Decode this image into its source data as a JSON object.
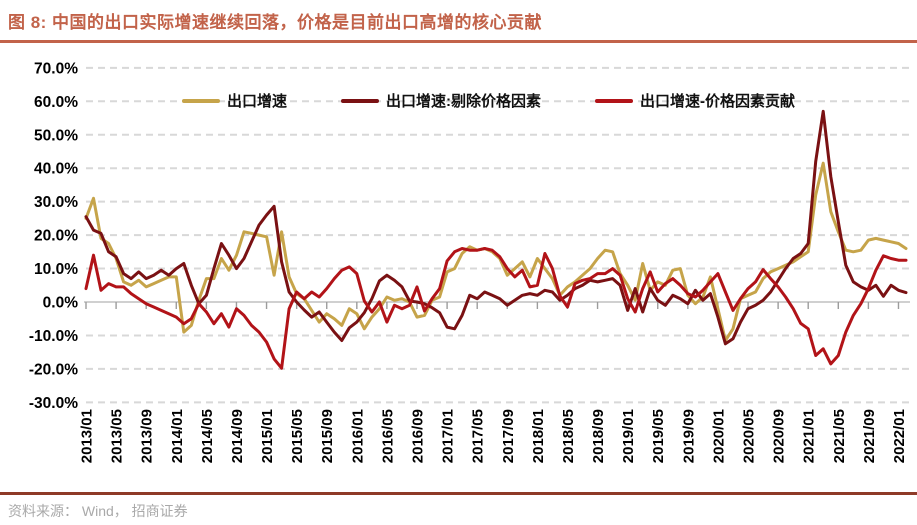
{
  "page": {
    "title": "图 8:  中国的出口实际增速继续回落，价格是目前出口高增的核心贡献",
    "source": "资料来源： Wind， 招商证券"
  },
  "colors": {
    "title": "#C2634A",
    "title_rule": "#C2634A",
    "footer_rule": "#8E3A28",
    "source_text": "#A9A9A9",
    "grid": "#D8D8D8",
    "axis": "#C0C0C0",
    "tick_mark": "#9C9C9C",
    "tick_text": "#000000"
  },
  "chart_data": {
    "type": "line",
    "title": "图 8:  中国的出口实际增速继续回落，价格是目前出口高增的核心贡献",
    "x_start": "2013/01",
    "x_end": "2022/02",
    "x_frequency": "monthly",
    "x_tick_labels": [
      "2013/01",
      "2013/05",
      "2013/09",
      "2014/01",
      "2014/05",
      "2014/09",
      "2015/01",
      "2015/05",
      "2015/09",
      "2016/01",
      "2016/05",
      "2016/09",
      "2017/01",
      "2017/05",
      "2017/09",
      "2018/01",
      "2018/05",
      "2018/09",
      "2019/01",
      "2019/05",
      "2019/09",
      "2020/01",
      "2020/05",
      "2020/09",
      "2021/01",
      "2021/05",
      "2021/09",
      "2022/01"
    ],
    "y_tick_labels": [
      "70.0%",
      "60.0%",
      "50.0%",
      "40.0%",
      "30.0%",
      "20.0%",
      "10.0%",
      "0.0%",
      "-10.0%",
      "-20.0%",
      "-30.0%"
    ],
    "ylim": [
      -30,
      70
    ],
    "grid": "horizontal-dashed",
    "legend_position": "top",
    "series": [
      {
        "name": "出口增速",
        "color": "#C6A44A",
        "values": [
          25,
          31,
          19,
          17.5,
          13,
          6,
          5,
          6.5,
          4.5,
          5.5,
          6.5,
          7.5,
          7.5,
          -9,
          -7,
          0.5,
          7,
          7,
          13,
          9.5,
          14,
          21,
          20.5,
          20,
          19.5,
          8,
          21,
          7.5,
          2.5,
          1,
          -2.5,
          -6,
          -3.5,
          -5,
          -7,
          -2,
          -3.5,
          -8,
          -4.5,
          -2,
          1.5,
          0.5,
          1,
          0,
          -4.5,
          -4,
          0.5,
          1.5,
          9,
          10,
          14.5,
          16.5,
          15.5,
          16,
          15,
          13,
          8,
          10,
          12,
          7.5,
          13,
          10,
          7,
          2,
          4.5,
          6,
          8,
          10,
          13,
          15.5,
          15,
          8.5,
          5,
          0.5,
          11.5,
          3.5,
          6,
          5,
          9.5,
          10,
          2,
          -0.5,
          1.5,
          7.5,
          -2,
          -11.5,
          -8,
          1,
          2,
          3,
          7,
          9,
          10,
          11,
          12,
          13.5,
          15,
          32,
          41.5,
          27,
          21,
          15.5,
          15,
          15.5,
          18.5,
          19,
          18.5,
          18,
          17.5,
          16
        ]
      },
      {
        "name": "出口增速:剔除价格因素",
        "color": "#7A1113",
        "values": [
          25.5,
          21.5,
          20.5,
          15,
          13.5,
          8.5,
          7,
          9,
          7,
          8,
          9.5,
          8,
          10,
          11.5,
          5,
          -0.5,
          2,
          10,
          17.5,
          14,
          10,
          13,
          18,
          23,
          26,
          28.6,
          12,
          3,
          0,
          -2.4,
          -4.5,
          -3,
          -6,
          -9,
          -11.5,
          -7.7,
          -6,
          -3.2,
          1,
          6.3,
          8,
          6.5,
          4.5,
          0.3,
          0,
          -0.5,
          -1.7,
          -3.2,
          -7.5,
          -8,
          -4,
          2,
          1,
          3,
          2,
          1,
          -1,
          0.5,
          2,
          2.5,
          2,
          3.5,
          3,
          0.5,
          2,
          4,
          5,
          6.5,
          6,
          6.5,
          7,
          5,
          -2.5,
          4,
          -3,
          4,
          0.5,
          -1,
          2,
          1,
          -0.5,
          3.5,
          0.5,
          2.5,
          -4.5,
          -12.5,
          -11,
          -6,
          -2,
          -1,
          0.5,
          3,
          6.5,
          10,
          13,
          14.5,
          17.5,
          42,
          57,
          37.5,
          24,
          11,
          6,
          4.5,
          3.5,
          5,
          1.7,
          5,
          3.5,
          2.8
        ]
      },
      {
        "name": "出口增速-价格因素贡献",
        "color": "#B21318",
        "values": [
          4,
          14,
          3.5,
          5.5,
          4.5,
          4.5,
          2.5,
          1,
          -0.5,
          -1.5,
          -2.5,
          -3.5,
          -4.5,
          -6.5,
          -5,
          -0.5,
          -3,
          -6.5,
          -3.5,
          -7.5,
          -2,
          -4,
          -7,
          -9,
          -12,
          -17,
          -19.8,
          -2,
          3,
          1,
          3,
          1.5,
          4,
          7,
          9.5,
          10.5,
          8.5,
          0.3,
          -3,
          0,
          -6,
          -1,
          -2,
          -1,
          4.5,
          -2.7,
          1,
          4,
          12.3,
          15,
          16,
          15.5,
          15.5,
          16,
          15.5,
          13.5,
          10,
          7.5,
          9.5,
          4.5,
          5,
          14.5,
          10,
          1.8,
          -1.5,
          5.5,
          6.5,
          7,
          8.5,
          8.5,
          10,
          8,
          1,
          -3,
          4,
          9,
          3,
          5.5,
          7,
          5,
          2.5,
          1.5,
          3.5,
          6,
          8.5,
          3,
          -2.5,
          1,
          4,
          6,
          9.7,
          7,
          4.5,
          1.5,
          -2,
          -6.4,
          -8,
          -16,
          -14,
          -18.5,
          -16,
          -9,
          -4,
          -0.5,
          4,
          9.5,
          13.8,
          13,
          12.5,
          12.5
        ]
      }
    ]
  }
}
